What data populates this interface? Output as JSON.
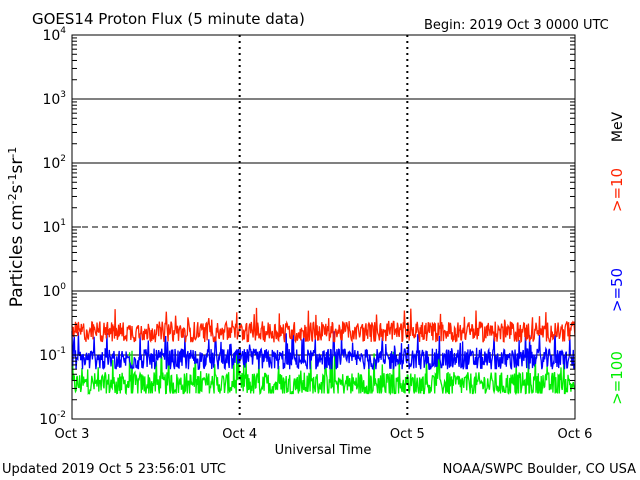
{
  "header": {
    "title": "GOES14 Proton Flux (5 minute data)",
    "begin": "Begin: 2019 Oct 3 0000 UTC"
  },
  "footer": {
    "updated": "Updated 2019 Oct  5 23:56:01 UTC",
    "credit": "NOAA/SWPC Boulder, CO USA"
  },
  "chart_data": {
    "type": "line",
    "title": "GOES14 Proton Flux (5 minute data)",
    "xlabel": "Universal Time",
    "ylabel": "Particles cm⁻²s⁻¹sr⁻¹",
    "yscale": "log",
    "ylim": [
      0.01,
      10000
    ],
    "xlim": [
      0,
      72
    ],
    "x_unit": "hours since 2019 Oct 3 0000 UTC",
    "x_ticks": [
      {
        "x": 0,
        "label": "Oct 3"
      },
      {
        "x": 24,
        "label": "Oct 4"
      },
      {
        "x": 48,
        "label": "Oct 5"
      },
      {
        "x": 72,
        "label": "Oct 6"
      }
    ],
    "y_ticks": [
      {
        "value": 0.01,
        "base": "10",
        "exp": "-2"
      },
      {
        "value": 0.1,
        "base": "10",
        "exp": "-1"
      },
      {
        "value": 1,
        "base": "10",
        "exp": "0"
      },
      {
        "value": 10,
        "base": "10",
        "exp": "1"
      },
      {
        "value": 100,
        "base": "10",
        "exp": "2"
      },
      {
        "value": 1000,
        "base": "10",
        "exp": "3"
      },
      {
        "value": 10000,
        "base": "10",
        "exp": "4"
      }
    ],
    "legend_unit": "MeV",
    "series": [
      {
        "name": ">=10",
        "color": "#ff2200",
        "typical": 0.23,
        "min": 0.14,
        "max": 0.55
      },
      {
        "name": ">=50",
        "color": "#0000ff",
        "typical": 0.085,
        "min": 0.06,
        "max": 0.25
      },
      {
        "name": ">=100",
        "color": "#00ee00",
        "typical": 0.035,
        "min": 0.025,
        "max": 0.12
      }
    ]
  }
}
